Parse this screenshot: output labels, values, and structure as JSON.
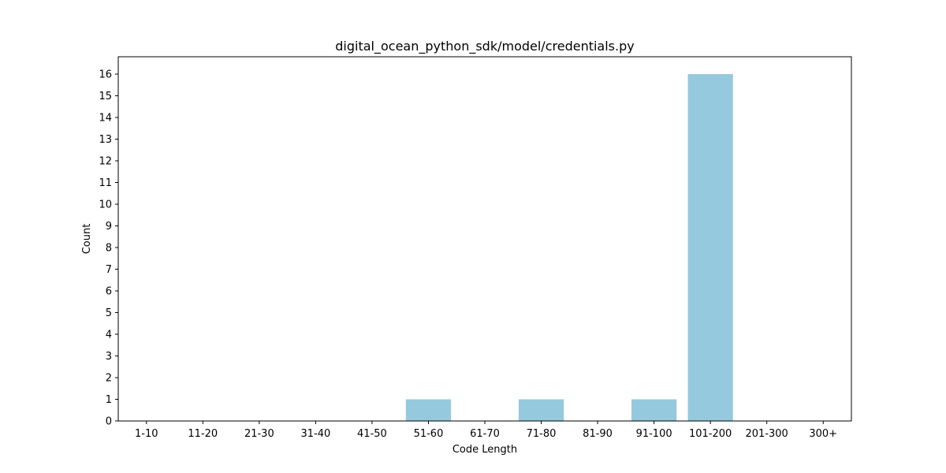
{
  "chart_data": {
    "type": "bar",
    "title": "digital_ocean_python_sdk/model/credentials.py",
    "xlabel": "Code Length",
    "ylabel": "Count",
    "categories": [
      "1-10",
      "11-20",
      "21-30",
      "31-40",
      "41-50",
      "51-60",
      "61-70",
      "71-80",
      "81-90",
      "91-100",
      "101-200",
      "201-300",
      "300+"
    ],
    "values": [
      0,
      0,
      0,
      0,
      0,
      1,
      0,
      1,
      0,
      1,
      16,
      0,
      0
    ],
    "ylim": [
      0,
      16.8
    ],
    "yticks": [
      0,
      1,
      2,
      3,
      4,
      5,
      6,
      7,
      8,
      9,
      10,
      11,
      12,
      13,
      14,
      15,
      16
    ],
    "bar_color": "#95c9dd",
    "grid": false,
    "legend": "none"
  }
}
